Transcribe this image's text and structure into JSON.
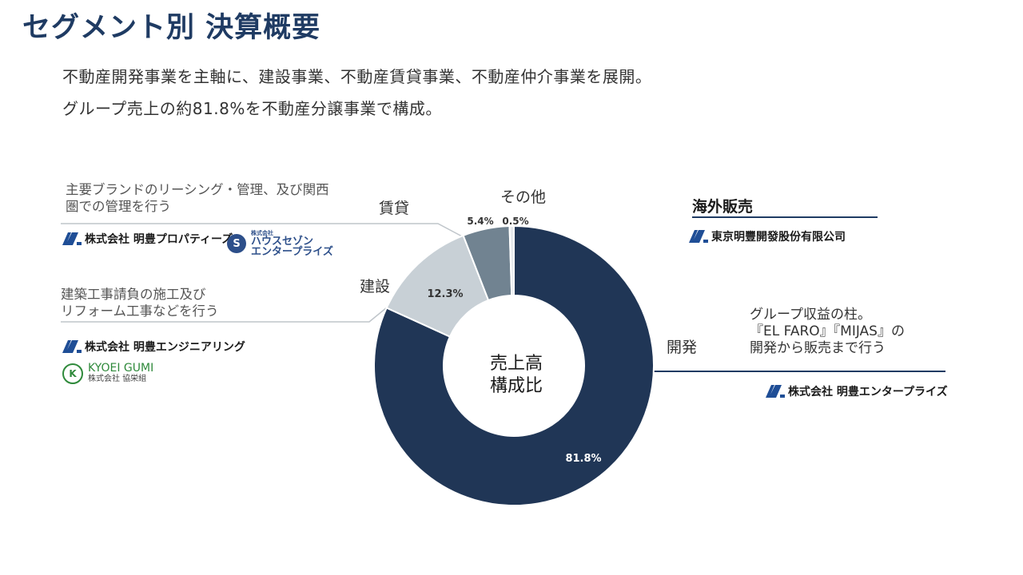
{
  "header": {
    "title": "セグメント別 決算概要",
    "subtitle_line1": "不動産開発事業を主軸に、建設事業、不動産賃貸事業、不動産仲介事業を展開。",
    "subtitle_line2": "グループ売上の約81.8%を不動産分譲事業で構成。"
  },
  "chart_data": {
    "type": "pie",
    "variant": "donut",
    "title": "売上高構成比",
    "center_label_line1": "売上高",
    "center_label_line2": "構成比",
    "categories": [
      "開発",
      "建設",
      "賃貸",
      "その他"
    ],
    "values": [
      81.8,
      12.3,
      5.4,
      0.5
    ],
    "value_labels": [
      "81.8%",
      "12.3%",
      "5.4%",
      "0.5%"
    ],
    "colors": [
      "#203656",
      "#c8d0d6",
      "#718391",
      "#e6e9ec"
    ]
  },
  "segments": {
    "development": {
      "label": "開発",
      "desc_line1": "グループ収益の柱。",
      "desc_line2": "『EL FARO』『MIJAS』の",
      "desc_line3": "開発から販売まで行う",
      "company": "株式会社 明豊エンタープライズ"
    },
    "construction": {
      "label": "建設",
      "desc_line1": "建築工事請負の施工及び",
      "desc_line2": "リフォーム工事などを行う",
      "company1": "株式会社 明豊エンジニアリング",
      "company2_en": "KYOEI GUMI",
      "company2_jp": "株式会社 協栄組"
    },
    "rental": {
      "label": "賃貸",
      "desc_line1": "主要ブランドのリーシング・管理、及び関西",
      "desc_line2": "圏での管理を行う",
      "company1": "株式会社 明豊プロパティーズ",
      "company2_small": "株式会社",
      "company2_line1": "ハウスセゾン",
      "company2_line2": "エンタープライズ"
    },
    "other": {
      "label": "その他"
    },
    "overseas": {
      "label": "海外販売",
      "company": "東京明豐開發股份有限公司"
    }
  },
  "colors": {
    "title": "#1f3b63",
    "logo_blue": "#1f4e96",
    "kyoei_green": "#2f8a3b"
  }
}
